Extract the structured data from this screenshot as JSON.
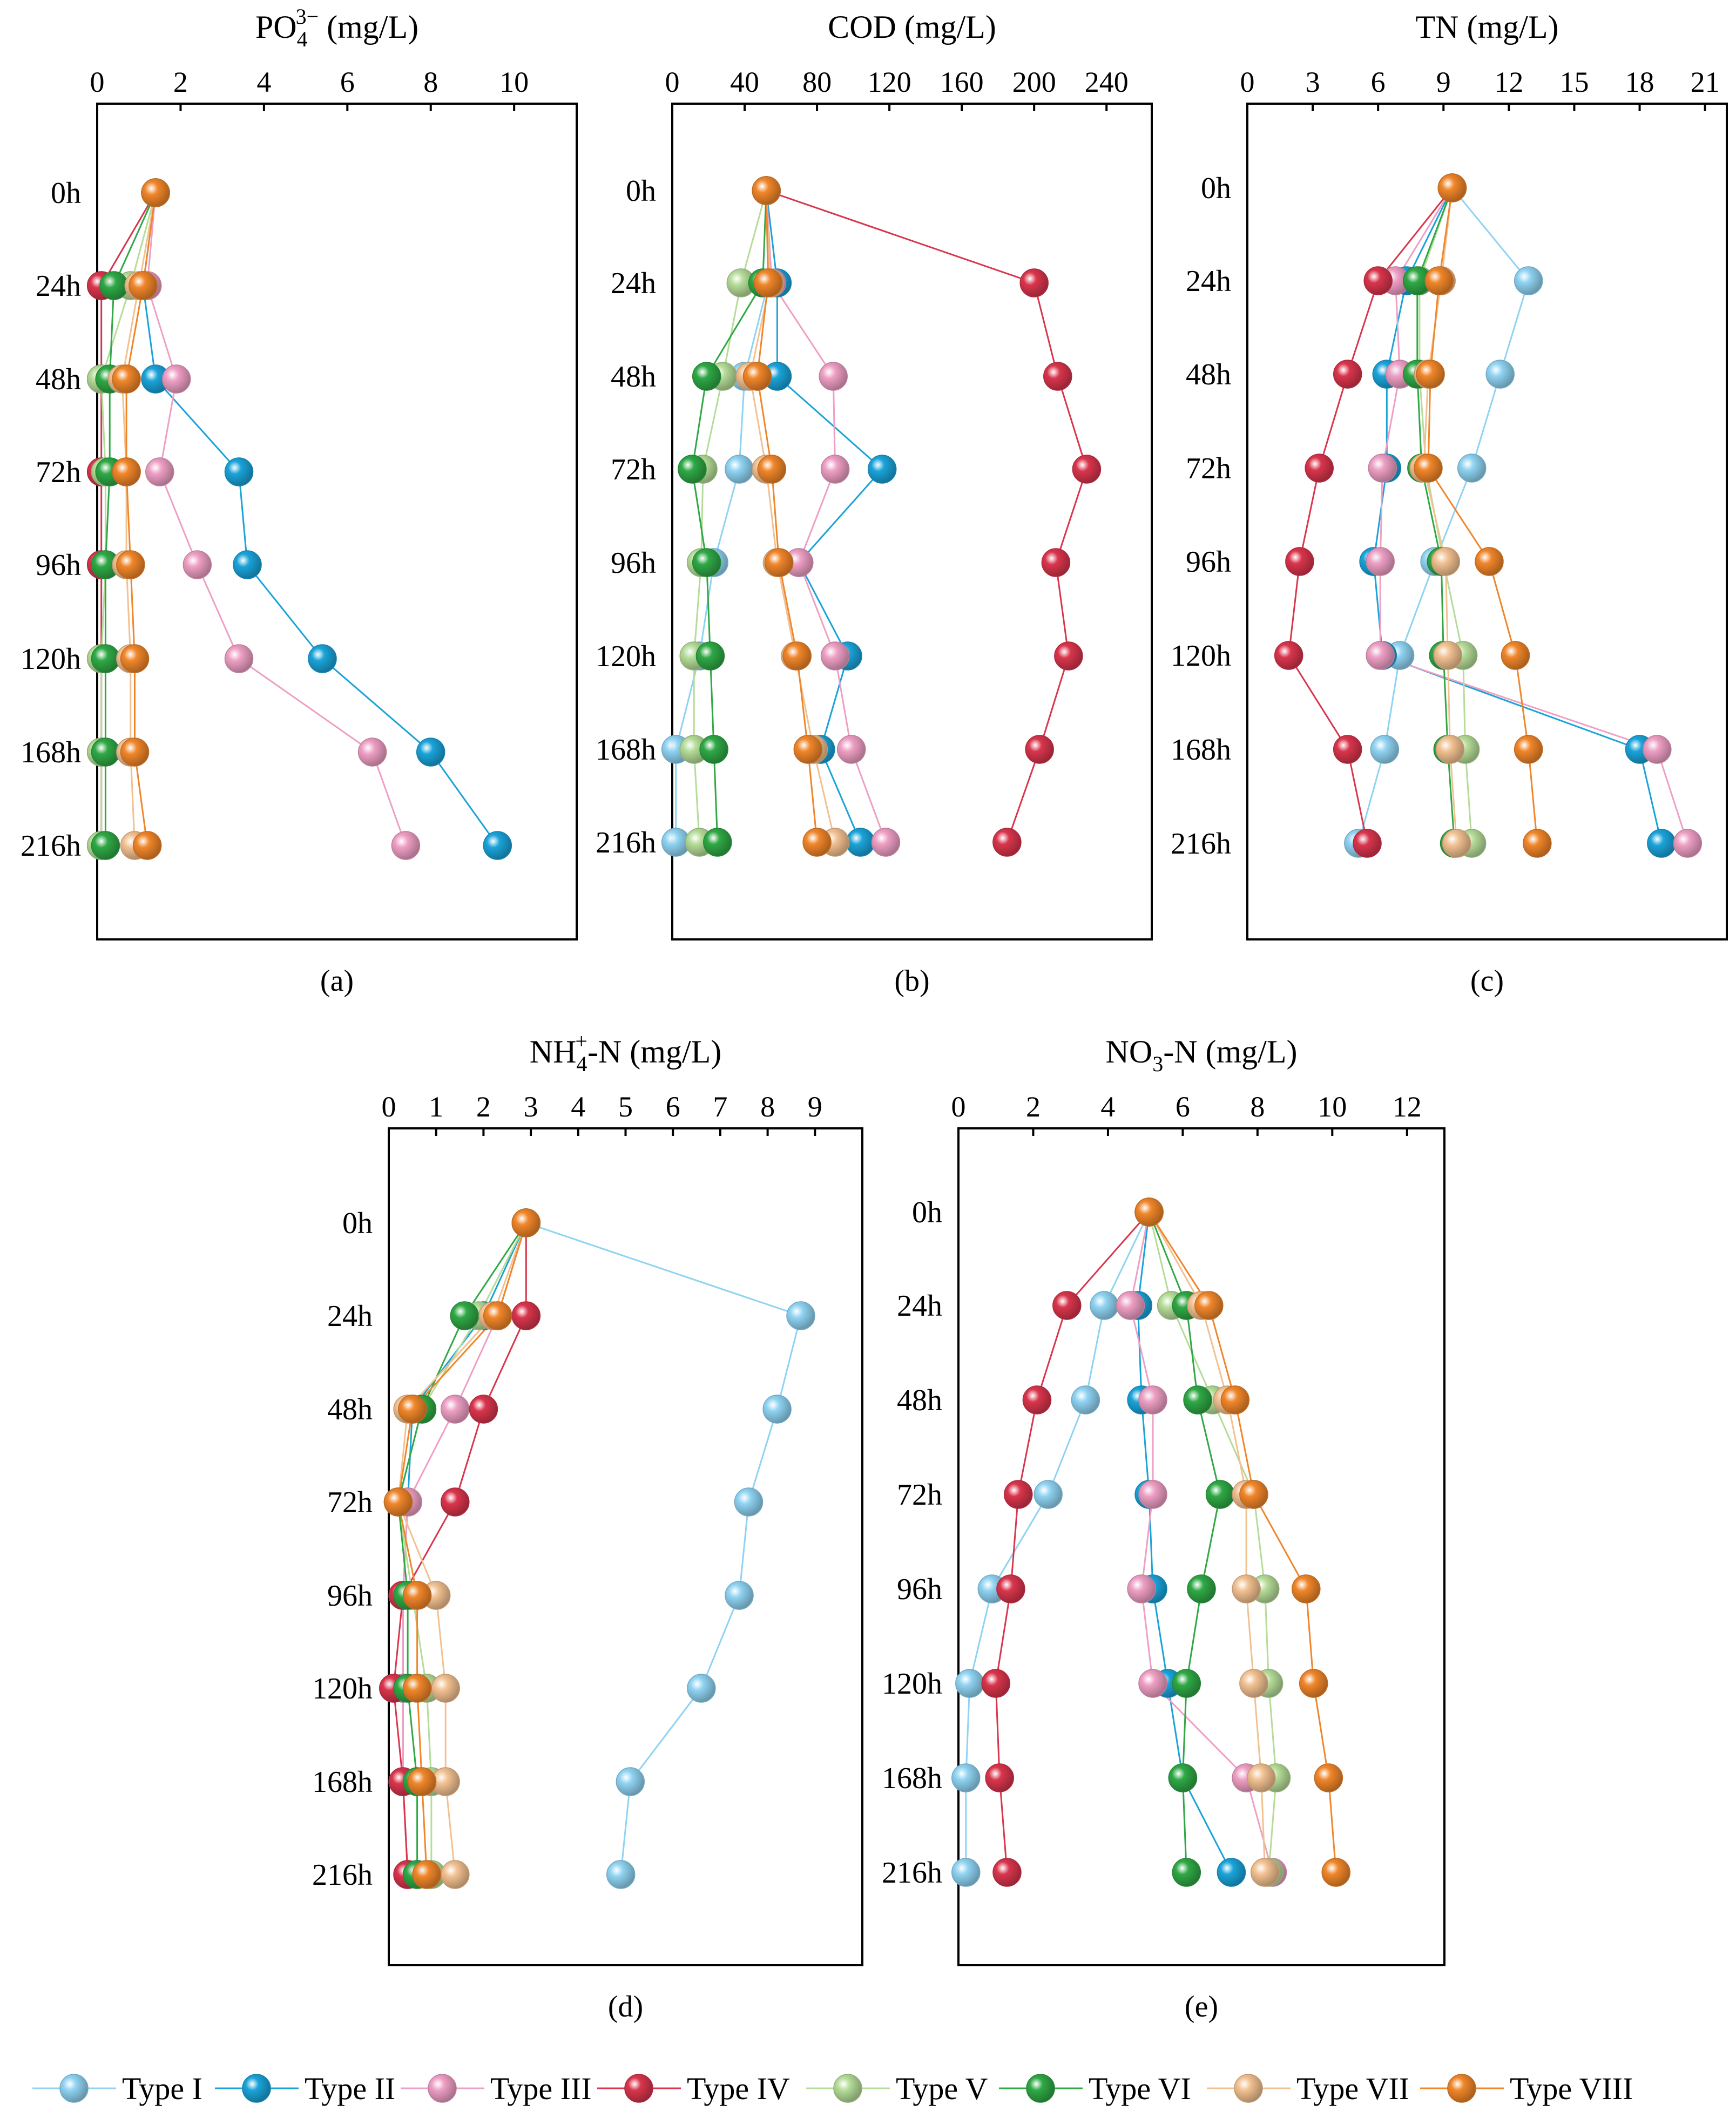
{
  "legend": {
    "entries": [
      {
        "key": "t1",
        "label": "Type I",
        "color": "#8fd3f2"
      },
      {
        "key": "t2",
        "label": "Type II",
        "color": "#1aa3d9"
      },
      {
        "key": "t3",
        "label": "Type III",
        "color": "#ee9fc4"
      },
      {
        "key": "t4",
        "label": "Type IV",
        "color": "#d9354c"
      },
      {
        "key": "t5",
        "label": "Type V",
        "color": "#b5dc98"
      },
      {
        "key": "t6",
        "label": "Type VI",
        "color": "#2fa845"
      },
      {
        "key": "t7",
        "label": "Type VII",
        "color": "#f2c191"
      },
      {
        "key": "t8",
        "label": "Type VIII",
        "color": "#f0862a"
      }
    ]
  },
  "chart_data": [
    {
      "id": "a",
      "type": "line",
      "title": "PO4 3− (mg/L)",
      "title_base": "PO",
      "title_sub": "4",
      "title_sup": "3−",
      "title_rest": " (mg/L)",
      "caption": "(a)",
      "x_axis_position": "top",
      "xlim": [
        0,
        11.5
      ],
      "xticks": [
        0,
        2,
        4,
        6,
        8,
        10
      ],
      "xtick_labels": [
        "0",
        "2",
        "4",
        "6",
        "8",
        "10"
      ],
      "y_categories": [
        "0h",
        "24h",
        "48h",
        "72h",
        "96h",
        "120h",
        "168h",
        "216h"
      ],
      "series": [
        {
          "key": "t1",
          "values": [
            1.4,
            0.1,
            0.1,
            0.1,
            0.1,
            0.1,
            0.1,
            0.1
          ]
        },
        {
          "key": "t2",
          "values": [
            1.4,
            1.1,
            1.4,
            3.4,
            3.6,
            5.4,
            8.0,
            9.6
          ]
        },
        {
          "key": "t3",
          "values": [
            1.4,
            1.2,
            1.9,
            1.5,
            2.4,
            3.4,
            6.6,
            7.4
          ]
        },
        {
          "key": "t4",
          "values": [
            1.4,
            0.1,
            0.1,
            0.1,
            0.1,
            0.1,
            0.1,
            0.1
          ]
        },
        {
          "key": "t5",
          "values": [
            1.4,
            0.8,
            0.1,
            0.2,
            0.2,
            0.1,
            0.1,
            0.1
          ]
        },
        {
          "key": "t6",
          "values": [
            1.4,
            0.4,
            0.3,
            0.3,
            0.2,
            0.2,
            0.2,
            0.2
          ]
        },
        {
          "key": "t7",
          "values": [
            1.4,
            1.0,
            0.6,
            0.7,
            0.7,
            0.8,
            0.8,
            0.9
          ]
        },
        {
          "key": "t8",
          "values": [
            1.4,
            1.1,
            0.7,
            0.7,
            0.8,
            0.9,
            0.9,
            1.2
          ]
        }
      ]
    },
    {
      "id": "b",
      "type": "line",
      "title": "COD (mg/L)",
      "caption": "(b)",
      "x_axis_position": "top",
      "xlim": [
        0,
        265
      ],
      "xticks": [
        0,
        40,
        80,
        120,
        160,
        200,
        240
      ],
      "xtick_labels": [
        "0",
        "40",
        "80",
        "120",
        "160",
        "200",
        "240"
      ],
      "y_categories": [
        "0h",
        "24h",
        "48h",
        "72h",
        "96h",
        "120h",
        "168h",
        "216h"
      ],
      "series": [
        {
          "key": "t1",
          "values": [
            52,
            53,
            40,
            37,
            23,
            15,
            2,
            2
          ]
        },
        {
          "key": "t2",
          "values": [
            52,
            58,
            58,
            116,
            70,
            97,
            82,
            104
          ]
        },
        {
          "key": "t3",
          "values": [
            52,
            55,
            89,
            90,
            70,
            90,
            99,
            118
          ]
        },
        {
          "key": "t4",
          "values": [
            52,
            200,
            213,
            229,
            212,
            219,
            203,
            185
          ]
        },
        {
          "key": "t5",
          "values": [
            52,
            38,
            28,
            17,
            16,
            12,
            12,
            15
          ]
        },
        {
          "key": "t6",
          "values": [
            52,
            50,
            19,
            11,
            19,
            21,
            23,
            25
          ]
        },
        {
          "key": "t7",
          "values": [
            52,
            54,
            43,
            52,
            58,
            68,
            78,
            90
          ]
        },
        {
          "key": "t8",
          "values": [
            52,
            53,
            47,
            55,
            59,
            69,
            75,
            80
          ]
        }
      ]
    },
    {
      "id": "c",
      "type": "line",
      "title": "TN (mg/L)",
      "caption": "(c)",
      "x_axis_position": "top",
      "xlim": [
        0,
        22
      ],
      "xticks": [
        0,
        3,
        6,
        9,
        12,
        15,
        18,
        21
      ],
      "xtick_labels": [
        "0",
        "3",
        "6",
        "9",
        "12",
        "15",
        "18",
        "21"
      ],
      "y_categories": [
        "0h",
        "24h",
        "48h",
        "72h",
        "96h",
        "120h",
        "168h",
        "216h"
      ],
      "series": [
        {
          "key": "t1",
          "values": [
            9.4,
            12.9,
            11.6,
            10.3,
            8.6,
            7.0,
            6.3,
            5.1
          ]
        },
        {
          "key": "t2",
          "values": [
            9.4,
            7.3,
            6.4,
            6.4,
            5.8,
            6.2,
            18.0,
            19.0
          ]
        },
        {
          "key": "t3",
          "values": [
            9.4,
            6.8,
            7.0,
            6.2,
            6.1,
            6.1,
            18.8,
            20.2
          ]
        },
        {
          "key": "t4",
          "values": [
            9.4,
            6.0,
            4.6,
            3.3,
            2.4,
            1.9,
            4.6,
            5.5
          ]
        },
        {
          "key": "t5",
          "values": [
            9.4,
            7.9,
            7.9,
            8.2,
            9.0,
            9.9,
            10.0,
            10.3
          ]
        },
        {
          "key": "t6",
          "values": [
            9.4,
            7.8,
            7.8,
            8.0,
            8.9,
            9.0,
            9.2,
            9.5
          ]
        },
        {
          "key": "t7",
          "values": [
            9.4,
            8.9,
            8.3,
            8.1,
            9.1,
            9.2,
            9.3,
            9.6
          ]
        },
        {
          "key": "t8",
          "values": [
            9.4,
            8.8,
            8.4,
            8.3,
            11.1,
            12.3,
            12.9,
            13.3
          ]
        }
      ]
    },
    {
      "id": "d",
      "type": "line",
      "title": "NH4+-N (mg/L)",
      "title_base": "NH",
      "title_sub": "4",
      "title_sup": "+",
      "title_rest": "-N (mg/L)",
      "caption": "(d)",
      "x_axis_position": "top",
      "xlim": [
        0,
        10
      ],
      "xticks": [
        0,
        1,
        2,
        3,
        4,
        5,
        6,
        7,
        8,
        9
      ],
      "xtick_labels": [
        "0",
        "1",
        "2",
        "3",
        "4",
        "5",
        "6",
        "7",
        "8",
        "9"
      ],
      "y_categories": [
        "0h",
        "24h",
        "48h",
        "72h",
        "96h",
        "120h",
        "168h",
        "216h"
      ],
      "series": [
        {
          "key": "t1",
          "values": [
            2.9,
            8.7,
            8.2,
            7.6,
            7.4,
            6.6,
            5.1,
            4.9
          ]
        },
        {
          "key": "t2",
          "values": [
            2.9,
            2.0,
            0.5,
            0.4,
            0.3,
            0.3,
            0.3,
            0.4
          ]
        },
        {
          "key": "t3",
          "values": [
            2.9,
            2.3,
            1.4,
            0.4,
            0.3,
            0.3,
            0.3,
            0.4
          ]
        },
        {
          "key": "t4",
          "values": [
            2.9,
            2.9,
            2.0,
            1.4,
            0.3,
            0.1,
            0.3,
            0.4
          ]
        },
        {
          "key": "t5",
          "values": [
            2.9,
            1.9,
            0.7,
            0.2,
            0.5,
            0.8,
            0.9,
            0.9
          ]
        },
        {
          "key": "t6",
          "values": [
            2.9,
            1.6,
            0.7,
            0.2,
            0.4,
            0.4,
            0.6,
            0.6
          ]
        },
        {
          "key": "t7",
          "values": [
            2.9,
            2.2,
            0.4,
            0.2,
            1.0,
            1.2,
            1.2,
            1.4
          ]
        },
        {
          "key": "t8",
          "values": [
            2.9,
            2.3,
            0.5,
            0.2,
            0.6,
            0.6,
            0.7,
            0.8
          ]
        }
      ]
    },
    {
      "id": "e",
      "type": "line",
      "title": "NO3-N (mg/L)",
      "title_base": "NO",
      "title_sub": "3",
      "title_rest": "-N (mg/L)",
      "caption": "(e)",
      "x_axis_position": "top",
      "xlim": [
        0,
        13
      ],
      "xticks": [
        0,
        2,
        4,
        6,
        8,
        10,
        12
      ],
      "xtick_labels": [
        "0",
        "2",
        "4",
        "6",
        "8",
        "10",
        "12"
      ],
      "y_categories": [
        "0h",
        "24h",
        "48h",
        "72h",
        "96h",
        "120h",
        "168h",
        "216h"
      ],
      "series": [
        {
          "key": "t1",
          "values": [
            5.1,
            3.9,
            3.4,
            2.4,
            0.9,
            0.3,
            0.2,
            0.2
          ]
        },
        {
          "key": "t2",
          "values": [
            5.1,
            4.8,
            4.9,
            5.1,
            5.2,
            5.6,
            6.0,
            7.3
          ]
        },
        {
          "key": "t3",
          "values": [
            5.1,
            4.6,
            5.2,
            5.2,
            4.9,
            5.2,
            7.7,
            8.4
          ]
        },
        {
          "key": "t4",
          "values": [
            5.1,
            2.9,
            2.1,
            1.6,
            1.4,
            1.0,
            1.1,
            1.3
          ]
        },
        {
          "key": "t5",
          "values": [
            5.1,
            5.7,
            6.8,
            7.9,
            8.2,
            8.3,
            8.5,
            8.3
          ]
        },
        {
          "key": "t6",
          "values": [
            5.1,
            6.1,
            6.4,
            7.0,
            6.5,
            6.1,
            6.0,
            6.1
          ]
        },
        {
          "key": "t7",
          "values": [
            5.1,
            6.5,
            7.2,
            7.7,
            7.7,
            7.9,
            8.1,
            8.2
          ]
        },
        {
          "key": "t8",
          "values": [
            5.1,
            6.7,
            7.4,
            7.9,
            9.3,
            9.5,
            9.9,
            10.1
          ]
        }
      ]
    }
  ]
}
